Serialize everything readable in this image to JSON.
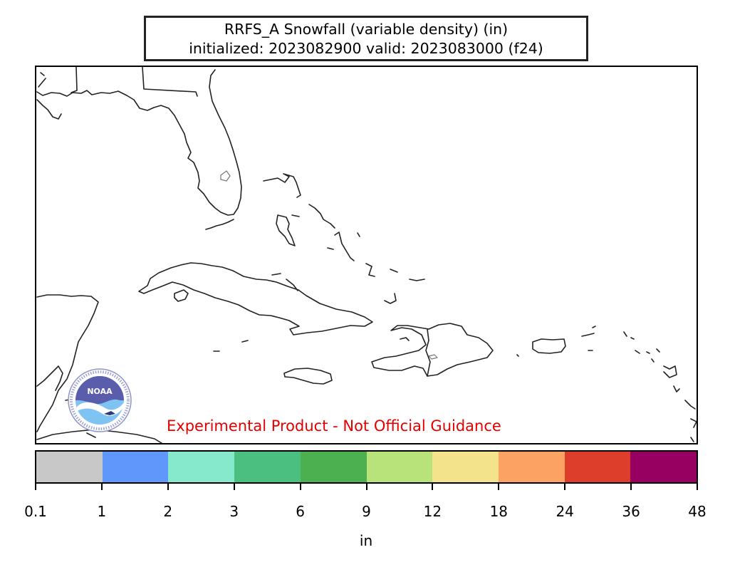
{
  "title": {
    "line1": "RRFS_A Snowfall (variable density) (in)",
    "line2": "initialized: 2023082900 valid: 2023083000 (f24)"
  },
  "disclaimer": "Experimental Product - Not Official Guidance",
  "logo": {
    "name": "noaa-logo",
    "text": "NOAA"
  },
  "map": {
    "region": "Florida, Gulf of Mexico and Caribbean",
    "features": [
      "Florida",
      "Bahamas",
      "Cuba",
      "Jamaica",
      "Hispaniola",
      "Puerto Rico",
      "Lesser Antilles",
      "Yucatan Peninsula"
    ],
    "coast_color": "#222222",
    "snowfall_shown": false
  },
  "colorbar": {
    "unit": "in",
    "ticks": [
      "0.1",
      "1",
      "2",
      "3",
      "6",
      "9",
      "12",
      "18",
      "24",
      "36",
      "48"
    ],
    "colors": [
      "#c8c8c8",
      "#6097fa",
      "#86e9cc",
      "#4bbf80",
      "#4caf50",
      "#b8e27a",
      "#f3e48b",
      "#fca263",
      "#dd3e2c",
      "#970061"
    ]
  }
}
